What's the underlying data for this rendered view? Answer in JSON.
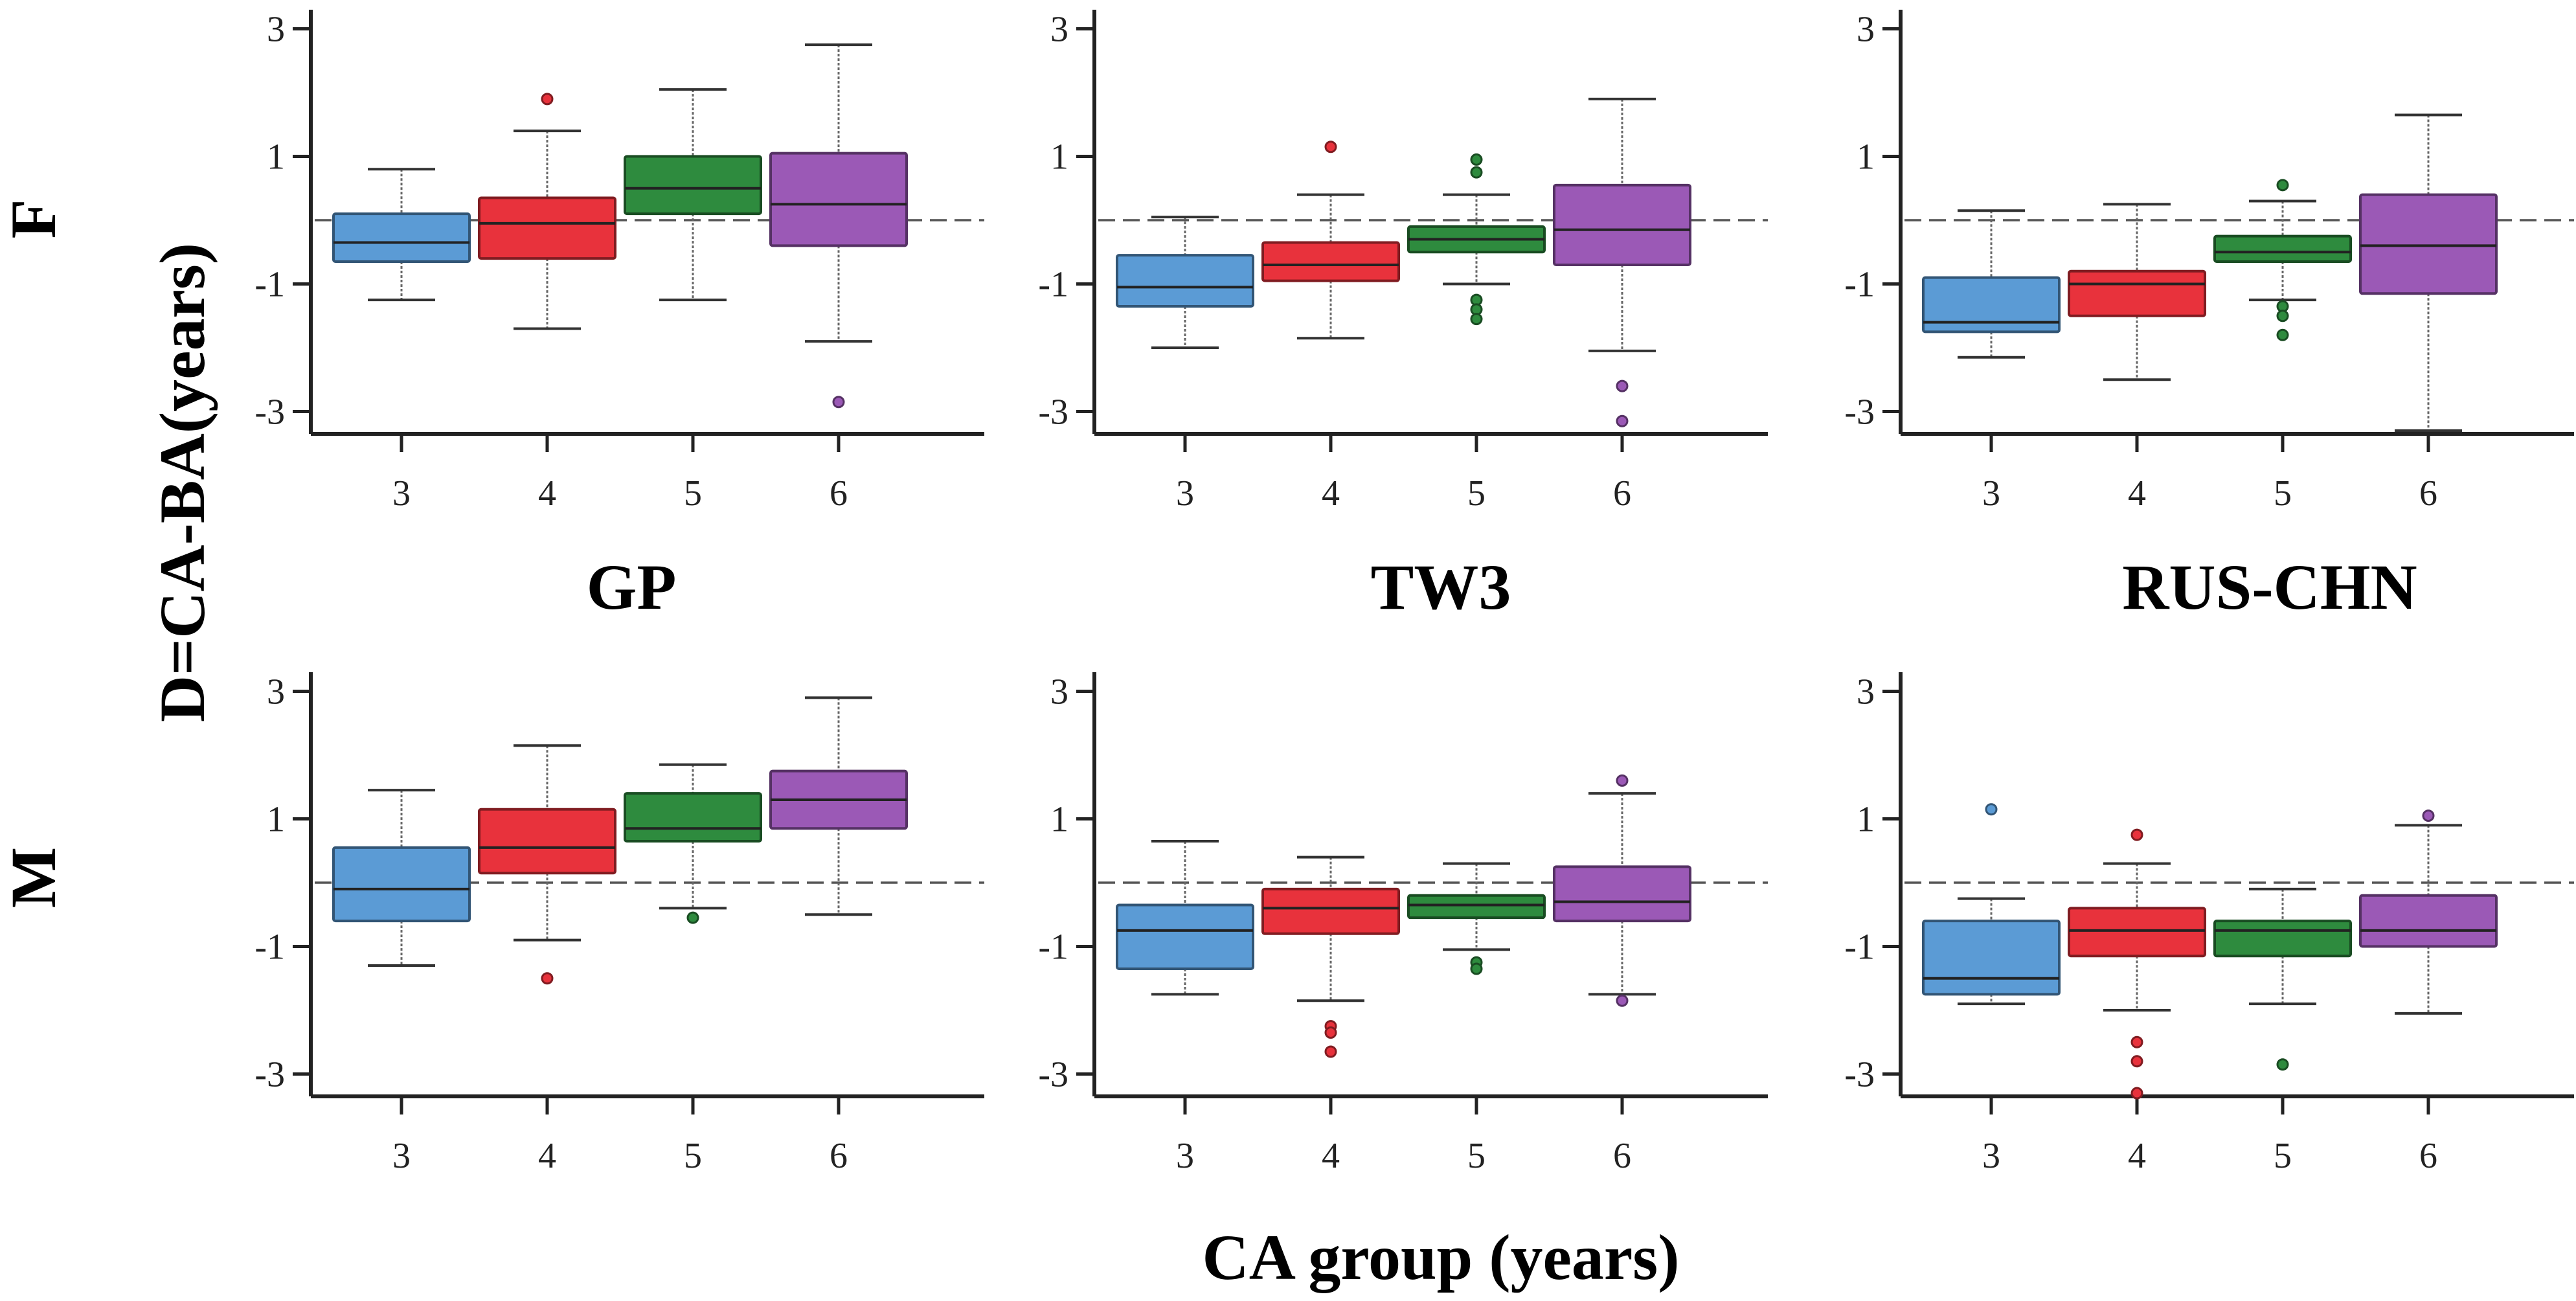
{
  "chart_data": {
    "type": "boxplot",
    "ylabel": "D=CA-BA(years)",
    "xlabel": "CA group (years)",
    "yticks": [
      3,
      1,
      -1,
      -3
    ],
    "ylim": [
      -3.3,
      3.3
    ],
    "reference_line": 0,
    "categories": [
      "3",
      "4",
      "5",
      "6"
    ],
    "colors": {
      "3": "#5b9bd5",
      "4": "#e8323c",
      "5": "#2e8b3e",
      "6": "#9b59b6"
    },
    "rows": [
      {
        "label": "F"
      },
      {
        "label": "M"
      }
    ],
    "methods": [
      "GP",
      "TW3",
      "RUS-CHN"
    ],
    "panels": [
      {
        "row": "F",
        "method": "GP",
        "boxes": [
          {
            "cat": "3",
            "whislo": -1.25,
            "q1": -0.65,
            "med": -0.35,
            "q3": 0.1,
            "whishi": 0.8,
            "fliers": []
          },
          {
            "cat": "4",
            "whislo": -1.7,
            "q1": -0.6,
            "med": -0.05,
            "q3": 0.35,
            "whishi": 1.4,
            "fliers": [
              1.9
            ]
          },
          {
            "cat": "5",
            "whislo": -1.25,
            "q1": 0.1,
            "med": 0.5,
            "q3": 1.0,
            "whishi": 2.05,
            "fliers": []
          },
          {
            "cat": "6",
            "whislo": -1.9,
            "q1": -0.4,
            "med": 0.25,
            "q3": 1.05,
            "whishi": 2.75,
            "fliers": [
              -2.85
            ]
          }
        ]
      },
      {
        "row": "F",
        "method": "TW3",
        "boxes": [
          {
            "cat": "3",
            "whislo": -2.0,
            "q1": -1.35,
            "med": -1.05,
            "q3": -0.55,
            "whishi": 0.05,
            "fliers": []
          },
          {
            "cat": "4",
            "whislo": -1.85,
            "q1": -0.95,
            "med": -0.7,
            "q3": -0.35,
            "whishi": 0.4,
            "fliers": [
              1.15
            ]
          },
          {
            "cat": "5",
            "whislo": -1.0,
            "q1": -0.5,
            "med": -0.3,
            "q3": -0.1,
            "whishi": 0.4,
            "fliers": [
              0.95,
              0.75,
              -1.25,
              -1.4,
              -1.55
            ]
          },
          {
            "cat": "6",
            "whislo": -2.05,
            "q1": -0.7,
            "med": -0.15,
            "q3": 0.55,
            "whishi": 1.9,
            "fliers": [
              -2.6,
              -3.15
            ]
          }
        ]
      },
      {
        "row": "F",
        "method": "RUS-CHN",
        "boxes": [
          {
            "cat": "3",
            "whislo": -2.15,
            "q1": -1.75,
            "med": -1.6,
            "q3": -0.9,
            "whishi": 0.15,
            "fliers": []
          },
          {
            "cat": "4",
            "whislo": -2.5,
            "q1": -1.5,
            "med": -1.0,
            "q3": -0.8,
            "whishi": 0.25,
            "fliers": []
          },
          {
            "cat": "5",
            "whislo": -1.25,
            "q1": -0.65,
            "med": -0.5,
            "q3": -0.25,
            "whishi": 0.3,
            "fliers": [
              0.55,
              -1.35,
              -1.5,
              -1.8
            ]
          },
          {
            "cat": "6",
            "whislo": -3.3,
            "q1": -1.15,
            "med": -0.4,
            "q3": 0.4,
            "whishi": 1.65,
            "fliers": []
          }
        ]
      },
      {
        "row": "M",
        "method": "GP",
        "boxes": [
          {
            "cat": "3",
            "whislo": -1.3,
            "q1": -0.6,
            "med": -0.1,
            "q3": 0.55,
            "whishi": 1.45,
            "fliers": []
          },
          {
            "cat": "4",
            "whislo": -0.9,
            "q1": 0.15,
            "med": 0.55,
            "q3": 1.15,
            "whishi": 2.15,
            "fliers": [
              -1.5
            ]
          },
          {
            "cat": "5",
            "whislo": -0.4,
            "q1": 0.65,
            "med": 0.85,
            "q3": 1.4,
            "whishi": 1.85,
            "fliers": [
              -0.55
            ]
          },
          {
            "cat": "6",
            "whislo": -0.5,
            "q1": 0.85,
            "med": 1.3,
            "q3": 1.75,
            "whishi": 2.9,
            "fliers": []
          }
        ]
      },
      {
        "row": "M",
        "method": "TW3",
        "boxes": [
          {
            "cat": "3",
            "whislo": -1.75,
            "q1": -1.35,
            "med": -0.75,
            "q3": -0.35,
            "whishi": 0.65,
            "fliers": []
          },
          {
            "cat": "4",
            "whislo": -1.85,
            "q1": -0.8,
            "med": -0.4,
            "q3": -0.1,
            "whishi": 0.4,
            "fliers": [
              -2.25,
              -2.35,
              -2.65
            ]
          },
          {
            "cat": "5",
            "whislo": -1.05,
            "q1": -0.55,
            "med": -0.35,
            "q3": -0.2,
            "whishi": 0.3,
            "fliers": [
              -1.25,
              -1.35
            ]
          },
          {
            "cat": "6",
            "whislo": -1.75,
            "q1": -0.6,
            "med": -0.3,
            "q3": 0.25,
            "whishi": 1.4,
            "fliers": [
              1.6,
              -1.85
            ]
          }
        ]
      },
      {
        "row": "M",
        "method": "RUS-CHN",
        "boxes": [
          {
            "cat": "3",
            "whislo": -1.9,
            "q1": -1.75,
            "med": -1.5,
            "q3": -0.6,
            "whishi": -0.25,
            "fliers": [
              1.15
            ]
          },
          {
            "cat": "4",
            "whislo": -2.0,
            "q1": -1.15,
            "med": -0.75,
            "q3": -0.4,
            "whishi": 0.3,
            "fliers": [
              0.75,
              -2.5,
              -2.8,
              -3.3
            ]
          },
          {
            "cat": "5",
            "whislo": -1.9,
            "q1": -1.15,
            "med": -0.75,
            "q3": -0.6,
            "whishi": -0.1,
            "fliers": [
              -2.85
            ]
          },
          {
            "cat": "6",
            "whislo": -2.05,
            "q1": -1.0,
            "med": -0.75,
            "q3": -0.2,
            "whishi": 0.9,
            "fliers": [
              1.05
            ]
          }
        ]
      }
    ]
  }
}
